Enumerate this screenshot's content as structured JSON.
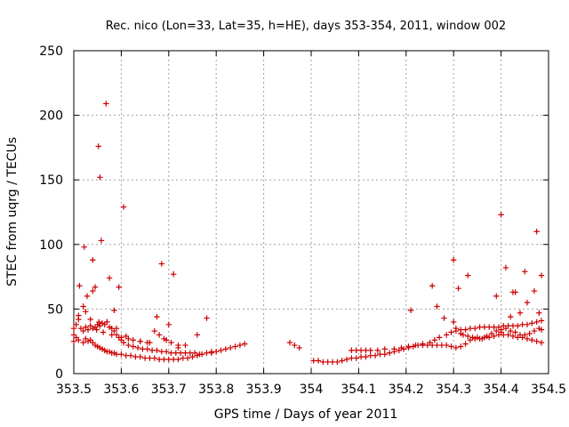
{
  "chart_data": {
    "type": "scatter",
    "title": "Rec. nico (Lon=33, Lat=35, h=HE), days 353-354, 2011, window 002",
    "xlabel": "GPS time / Days of year 2011",
    "ylabel": "STEC from uqrg / TECUs",
    "xlim": [
      353.5,
      354.5
    ],
    "ylim": [
      0,
      250
    ],
    "xticks": [
      "353.5",
      "353.6",
      "353.7",
      "353.8",
      "353.9",
      "354",
      "354.1",
      "354.2",
      "354.3",
      "354.4",
      "354.5"
    ],
    "yticks": [
      "0",
      "50",
      "100",
      "150",
      "200",
      "250"
    ],
    "grid": true,
    "marker": "plus",
    "color": "#cc0000",
    "series": [
      {
        "x": [
          353.5,
          353.5,
          353.5,
          353.505,
          353.505,
          353.51,
          353.51,
          353.515,
          353.52,
          353.52,
          353.525,
          353.525,
          353.53,
          353.53,
          353.535,
          353.535,
          353.54,
          353.54,
          353.545,
          353.545,
          353.55,
          353.55,
          353.555,
          353.555,
          353.56,
          353.56,
          353.565,
          353.565,
          353.57,
          353.57,
          353.575,
          353.575,
          353.58,
          353.58,
          353.585,
          353.585,
          353.59,
          353.59,
          353.595,
          353.6,
          353.6,
          353.605,
          353.61,
          353.615,
          353.62,
          353.625,
          353.63,
          353.635,
          353.64,
          353.645,
          353.65,
          353.655,
          353.66,
          353.665,
          353.67,
          353.675,
          353.68,
          353.685,
          353.69,
          353.695,
          353.7,
          353.705,
          353.71,
          353.715,
          353.72,
          353.725,
          353.73,
          353.735,
          353.74,
          353.745,
          353.75,
          353.755,
          353.76,
          353.765,
          353.77,
          353.78,
          353.79,
          353.8,
          353.81,
          353.82,
          353.83,
          353.84,
          353.85,
          353.86,
          353.512,
          353.522,
          353.528,
          353.54,
          353.545,
          353.552,
          353.555,
          353.558,
          353.568,
          353.575,
          353.585,
          353.595,
          353.605,
          353.615,
          353.64,
          353.66,
          353.675,
          353.685,
          353.69,
          353.7,
          353.71,
          353.72,
          353.78,
          353.51,
          353.52,
          353.525,
          353.535,
          353.54,
          353.548,
          353.553,
          353.562,
          353.57,
          353.58,
          353.59,
          353.6,
          353.61,
          353.625,
          353.64,
          353.655,
          353.67,
          353.68,
          353.695,
          353.705,
          353.72,
          353.735,
          353.76,
          353.79
        ],
        "y": [
          35,
          30,
          25,
          38,
          28,
          42,
          26,
          35,
          33,
          24,
          36,
          27,
          34,
          25,
          37,
          26,
          35,
          24,
          36,
          22,
          38,
          21,
          37,
          20,
          39,
          19,
          38,
          18,
          40,
          17,
          36,
          17,
          35,
          16,
          33,
          16,
          30,
          15,
          28,
          26,
          15,
          24,
          14,
          22,
          14,
          21,
          13,
          20,
          13,
          19,
          12,
          19,
          12,
          18,
          12,
          18,
          11,
          17,
          11,
          17,
          11,
          16,
          11,
          16,
          11,
          16,
          12,
          16,
          12,
          16,
          13,
          16,
          14,
          15,
          15,
          16,
          17,
          17,
          18,
          19,
          20,
          21,
          22,
          23,
          68,
          98,
          60,
          88,
          67,
          176,
          152,
          103,
          209,
          74,
          49,
          67,
          129,
          27,
          25,
          24,
          44,
          85,
          27,
          38,
          77,
          20,
          43,
          45,
          52,
          48,
          42,
          64,
          34,
          40,
          32,
          40,
          30,
          35,
          28,
          29,
          26,
          25,
          24,
          33,
          30,
          26,
          24,
          22,
          22,
          30,
          16
        ]
      },
      {
        "x": [
          353.955,
          353.965,
          353.975,
          354.005,
          354.015,
          354.025,
          354.035,
          354.045,
          354.055,
          354.065,
          354.075,
          354.085,
          354.095,
          354.105,
          354.115,
          354.125,
          354.135,
          354.145,
          354.155,
          354.165,
          354.175,
          354.185,
          354.195,
          354.205,
          354.215,
          354.225,
          354.235,
          354.245,
          354.255,
          354.265,
          354.275,
          354.285,
          354.295,
          354.305,
          354.315,
          354.325,
          354.335,
          354.345,
          354.355,
          354.365,
          354.375,
          354.385,
          354.395,
          354.405,
          354.415,
          354.425,
          354.435,
          354.445,
          354.455,
          354.465,
          354.475,
          354.485,
          354.085,
          354.095,
          354.105,
          354.115,
          354.125,
          354.14,
          354.155,
          354.175,
          354.19,
          354.205,
          354.22,
          354.235,
          354.25,
          354.26,
          354.27,
          354.285,
          354.295,
          354.305,
          354.315,
          354.325,
          354.335,
          354.345,
          354.355,
          354.365,
          354.375,
          354.385,
          354.395,
          354.405,
          354.415,
          354.425,
          354.435,
          354.445,
          354.455,
          354.465,
          354.475,
          354.485,
          354.255,
          354.265,
          354.28,
          354.3,
          354.305,
          354.315,
          354.32,
          354.33,
          354.34,
          354.35,
          354.36,
          354.37,
          354.38,
          354.39,
          354.4,
          354.41,
          354.42,
          354.43,
          354.44,
          354.45,
          354.46,
          354.47,
          354.48,
          354.485,
          354.21,
          354.3,
          354.31,
          354.33,
          354.39,
          354.4,
          354.41,
          354.42,
          354.425,
          354.43,
          354.44,
          354.45,
          354.455,
          354.47,
          354.475,
          354.48,
          354.485,
          354.4
        ],
        "y": [
          24,
          22,
          20,
          10,
          10,
          9,
          9,
          9,
          9,
          10,
          11,
          12,
          12,
          13,
          13,
          14,
          14,
          15,
          15,
          16,
          17,
          18,
          19,
          20,
          21,
          22,
          22,
          22,
          22,
          22,
          22,
          22,
          21,
          20,
          21,
          23,
          26,
          27,
          27,
          28,
          28,
          29,
          30,
          30,
          30,
          29,
          28,
          28,
          27,
          26,
          25,
          24,
          18,
          18,
          18,
          18,
          18,
          18,
          19,
          19,
          20,
          21,
          22,
          23,
          24,
          26,
          28,
          30,
          32,
          33,
          34,
          34,
          35,
          35,
          36,
          36,
          36,
          36,
          36,
          37,
          37,
          37,
          37,
          38,
          38,
          39,
          40,
          41,
          68,
          52,
          43,
          40,
          35,
          31,
          30,
          29,
          28,
          28,
          27,
          29,
          31,
          33,
          34,
          35,
          33,
          32,
          30,
          30,
          31,
          33,
          35,
          34,
          49,
          88,
          66,
          76,
          60,
          123,
          82,
          44,
          63,
          63,
          47,
          79,
          55,
          64,
          110,
          47,
          76,
          32
        ]
      }
    ]
  }
}
